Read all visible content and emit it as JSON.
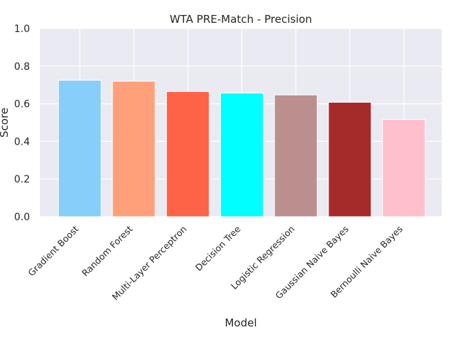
{
  "chart_data": {
    "type": "bar",
    "title": "WTA PRE-Match - Precision",
    "xlabel": "Model",
    "ylabel": "Score",
    "ylim": [
      0,
      1.0
    ],
    "yticks": [
      "0.0",
      "0.2",
      "0.4",
      "0.6",
      "0.8",
      "1.0"
    ],
    "grid": true,
    "categories": [
      "Gradient Boost",
      "Random Forest",
      "Multi-Layer Perceptron",
      "Decision Tree",
      "Logistic Regression",
      "Gaussian Naive Bayes",
      "Bernoulli Naive Bayes"
    ],
    "values": [
      0.725,
      0.72,
      0.665,
      0.657,
      0.647,
      0.608,
      0.517
    ],
    "colors": [
      "#87cefa",
      "#ffa07a",
      "#ff6347",
      "#00ffff",
      "#bc8f8f",
      "#a52a2a",
      "#ffc0cb"
    ],
    "background_color": "#eaeaf2"
  }
}
